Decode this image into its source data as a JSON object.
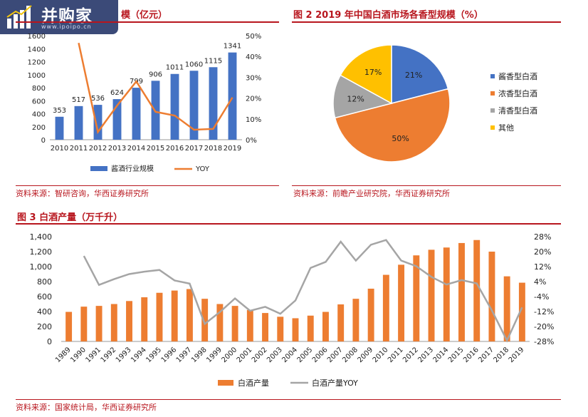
{
  "logo": {
    "name": "并购家",
    "url": "www.ipoipo.cn"
  },
  "figures": {
    "fig1": {
      "title_visible": "模（亿元）",
      "source": "资料来源：智研咨询，华西证券研究所"
    },
    "fig2": {
      "title": "图 2  2019 年中国白酒市场各香型规模（%）",
      "source": "资料来源：前瞻产业研究院，华西证券研究所"
    },
    "fig3": {
      "title": "图 3  白酒产量（万千升）",
      "source": "资料来源：国家统计局，华西证券研究所"
    }
  },
  "colors": {
    "accent": "#b8161e",
    "blue": "#4472c4",
    "orange": "#ed7d31",
    "gray": "#a5a5a5",
    "gold": "#ffc000"
  },
  "chart_data": [
    {
      "type": "bar",
      "categories": [
        "2010",
        "2011",
        "2012",
        "2013",
        "2014",
        "2015",
        "2016",
        "2017",
        "2018",
        "2019"
      ],
      "series": [
        {
          "name": "酱酒行业规模",
          "type": "bar",
          "axis": "left",
          "values": [
            353,
            517,
            536,
            624,
            799,
            906,
            1011,
            1060,
            1115,
            1341
          ]
        },
        {
          "name": "YOY",
          "type": "line",
          "axis": "right",
          "values": [
            null,
            46.5,
            3.7,
            16.4,
            28.0,
            13.4,
            11.6,
            4.8,
            5.2,
            20.3
          ]
        }
      ],
      "ylim": [
        0,
        1600
      ],
      "yticks": [
        0,
        200,
        400,
        600,
        800,
        1000,
        1200,
        1400,
        1600
      ],
      "y2lim": [
        0,
        50
      ],
      "y2ticks": [
        "0%",
        "10%",
        "20%",
        "30%",
        "40%",
        "50%"
      ],
      "data_labels": [
        "353",
        "517",
        "536",
        "624",
        "799",
        "906",
        "1011",
        "1060",
        "1115",
        "1341"
      ],
      "legend": "bottom"
    },
    {
      "type": "pie",
      "slices": [
        {
          "name": "酱香型白酒",
          "value": 21,
          "label": "21%"
        },
        {
          "name": "浓香型白酒",
          "value": 50,
          "label": "50%"
        },
        {
          "name": "清香型白酒",
          "value": 12,
          "label": "12%"
        },
        {
          "name": "其他",
          "value": 17,
          "label": "17%"
        }
      ],
      "legend": "right"
    },
    {
      "type": "bar",
      "categories": [
        "1989",
        "1990",
        "1991",
        "1992",
        "1993",
        "1994",
        "1995",
        "1996",
        "1997",
        "1998",
        "1999",
        "2000",
        "2001",
        "2002",
        "2003",
        "2004",
        "2005",
        "2006",
        "2007",
        "2008",
        "2009",
        "2010",
        "2011",
        "2012",
        "2013",
        "2014",
        "2015",
        "2016",
        "2017",
        "2018",
        "2019"
      ],
      "series": [
        {
          "name": "白酒产量",
          "type": "bar",
          "axis": "left",
          "values": [
            395,
            465,
            475,
            500,
            540,
            590,
            650,
            680,
            700,
            570,
            500,
            475,
            420,
            380,
            330,
            310,
            345,
            395,
            495,
            570,
            705,
            890,
            1025,
            1150,
            1225,
            1255,
            1315,
            1355,
            1200,
            870,
            785
          ]
        },
        {
          "name": "白酒产量YOY",
          "type": "line",
          "axis": "right",
          "values": [
            null,
            17.7,
            2.2,
            5.3,
            8.0,
            9.3,
            10.2,
            4.6,
            2.9,
            -18.6,
            -12.3,
            -5.0,
            -11.6,
            -9.5,
            -13.2,
            -6.1,
            11.3,
            14.5,
            25.3,
            15.2,
            23.7,
            26.2,
            15.2,
            12.2,
            6.5,
            2.4,
            4.8,
            3.0,
            -11.4,
            -27.5,
            -9.8
          ]
        }
      ],
      "ylim": [
        0,
        1400
      ],
      "yticks": [
        "0",
        "200",
        "400",
        "600",
        "800",
        "1,000",
        "1,200",
        "1,400"
      ],
      "y2lim": [
        -28,
        28
      ],
      "y2ticks": [
        "-28%",
        "-20%",
        "-12%",
        "-4%",
        "4%",
        "12%",
        "20%",
        "28%"
      ],
      "legend": "bottom"
    }
  ]
}
